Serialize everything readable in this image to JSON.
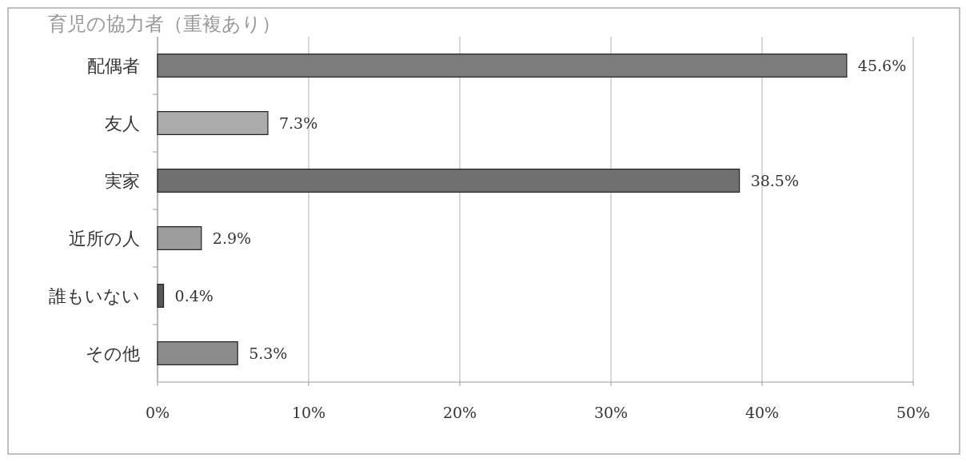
{
  "chart_data": {
    "type": "bar",
    "orientation": "horizontal",
    "title": "育児の協力者（重複あり）",
    "categories": [
      "配偶者",
      "友人",
      "実家",
      "近所の人",
      "誰もいない",
      "その他"
    ],
    "values": [
      45.6,
      7.3,
      38.5,
      2.9,
      0.4,
      5.3
    ],
    "value_labels": [
      "45.6%",
      "7.3%",
      "38.5%",
      "2.9%",
      "0.4%",
      "5.3%"
    ],
    "colors": [
      "#7c7c7c",
      "#ababab",
      "#707070",
      "#9c9c9c",
      "#585858",
      "#8c8c8c"
    ],
    "xlim": [
      0,
      50
    ],
    "xticks": [
      {
        "value": 0,
        "label": "0%"
      },
      {
        "value": 10,
        "label": "10%"
      },
      {
        "value": 20,
        "label": "20%"
      },
      {
        "value": 30,
        "label": "30%"
      },
      {
        "value": 40,
        "label": "40%"
      },
      {
        "value": 50,
        "label": "50%"
      }
    ],
    "grid": "x"
  }
}
